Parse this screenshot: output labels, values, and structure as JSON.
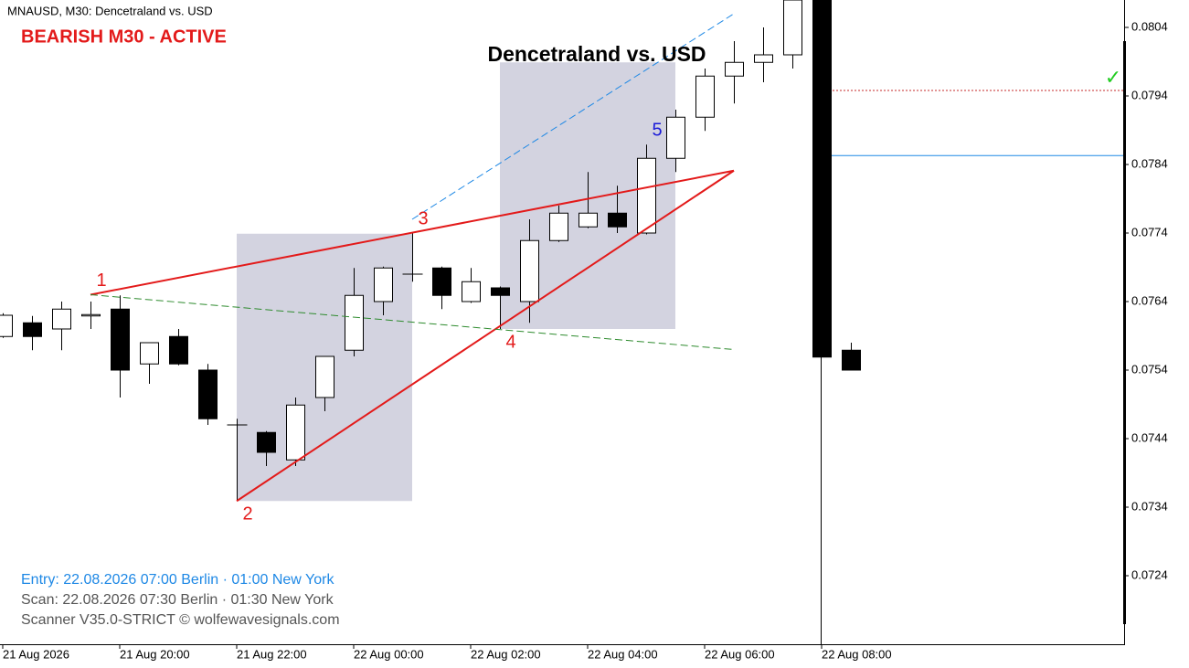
{
  "chart_data": {
    "type": "candlestick",
    "header": "MNAUSD, M30:  Dencetraland vs. USD",
    "status": "BEARISH M30 - ACTIVE",
    "title": "Dencetraland vs. USD",
    "info": [
      "Entry: 22.08.2026  07:00 Berlin · 01:00 New York",
      "Scan:  22.08.2026  07:30 Berlin · 01:30 New York",
      "Scanner V35.0-STRICT   © wolfewavesignals.com"
    ],
    "check": "✓",
    "categories": [
      "21 Aug 2026",
      null,
      null,
      null,
      "21 Aug 20:00",
      null,
      null,
      null,
      "21 Aug 22:00",
      null,
      null,
      null,
      "22 Aug 00:00",
      null,
      null,
      null,
      "22 Aug 02:00",
      null,
      null,
      null,
      "22 Aug 04:00",
      null,
      null,
      null,
      "22 Aug 06:00",
      null,
      null,
      null,
      "22 Aug 08:00",
      null
    ],
    "open": [
      0.07589,
      0.07609,
      0.076,
      0.07619,
      0.07629,
      0.07549,
      0.07589,
      0.0754,
      0.0746,
      0.07449,
      0.07409,
      0.075,
      0.07569,
      0.0764,
      0.0768,
      0.07689,
      0.0764,
      0.0766,
      0.0764,
      0.07729,
      0.07749,
      0.07769,
      0.0774,
      0.07849,
      0.07909,
      0.07969,
      0.07989,
      0.08,
      0.0808,
      0.07569
    ],
    "high": [
      0.07623,
      0.07619,
      0.0764,
      0.0764,
      0.07649,
      0.0758,
      0.076,
      0.07549,
      0.07469,
      0.07451,
      0.075,
      0.0756,
      0.07689,
      0.07691,
      0.0774,
      0.07691,
      0.07689,
      0.07662,
      0.0776,
      0.0778,
      0.07829,
      0.07809,
      0.07869,
      0.0792,
      0.0798,
      0.0802,
      0.0804,
      0.081,
      0.081,
      0.0758
    ],
    "low": [
      0.07587,
      0.07569,
      0.07569,
      0.076,
      0.075,
      0.0752,
      0.07547,
      0.0746,
      0.07349,
      0.074,
      0.074,
      0.0748,
      0.0756,
      0.0762,
      0.07669,
      0.07629,
      0.07638,
      0.076,
      0.07609,
      0.07727,
      0.07747,
      0.0774,
      0.07738,
      0.07829,
      0.07889,
      0.07929,
      0.0796,
      0.0798,
      0.07559,
      0.0754
    ],
    "close": [
      0.0762,
      0.07589,
      0.07629,
      0.07621,
      0.0754,
      0.0758,
      0.07549,
      0.07469,
      0.0746,
      0.0742,
      0.07489,
      0.0756,
      0.07649,
      0.07689,
      0.0768,
      0.07649,
      0.07669,
      0.07649,
      0.07729,
      0.07769,
      0.07769,
      0.07749,
      0.07849,
      0.07909,
      0.07969,
      0.07989,
      0.08,
      0.0808,
      0.07559,
      0.0754
    ],
    "ylim": [
      0.0714,
      0.0808
    ],
    "yticks": [
      0.0724,
      0.0734,
      0.0744,
      0.0754,
      0.0764,
      0.0774,
      0.0784,
      0.0794,
      0.0804
    ],
    "zones": [
      {
        "from": 8,
        "to": 14,
        "low": 0.07349,
        "high": 0.07739,
        "color": "#d3d3e0"
      },
      {
        "from": 17,
        "to": 23,
        "low": 0.076,
        "high": 0.07989,
        "color": "#d3d3e0"
      }
    ],
    "lines": [
      {
        "from": [
          3,
          0.0765
        ],
        "to": [
          25,
          0.07831
        ],
        "color": "#e31a1a",
        "dashed": false
      },
      {
        "from": [
          8,
          0.07349
        ],
        "to": [
          25,
          0.07831
        ],
        "color": "#e31a1a",
        "dashed": false
      },
      {
        "from": [
          14,
          0.0776
        ],
        "to": [
          25,
          0.0806
        ],
        "color": "#1e88e5",
        "dashed": true
      },
      {
        "from": [
          3,
          0.0765
        ],
        "to": [
          25,
          0.0757
        ],
        "color": "#2e8b2e",
        "dashed": true
      }
    ],
    "levels": [
      {
        "from": 28,
        "value": 0.07948,
        "color": "#c62828",
        "dashed": true
      },
      {
        "from": 28,
        "value": 0.07853,
        "color": "#1e88e5",
        "dashed": false
      }
    ],
    "wave_points": [
      {
        "label": "1",
        "x": 3,
        "y": 0.0765,
        "color": "#e31a1a"
      },
      {
        "label": "2",
        "x": 8,
        "y": 0.07349,
        "color": "#e31a1a"
      },
      {
        "label": "3",
        "x": 14,
        "y": 0.0774,
        "color": "#e31a1a"
      },
      {
        "label": "4",
        "x": 17,
        "y": 0.076,
        "color": "#e31a1a"
      },
      {
        "label": "5",
        "x": 22,
        "y": 0.07869,
        "color": "#1a1ad8"
      }
    ]
  }
}
